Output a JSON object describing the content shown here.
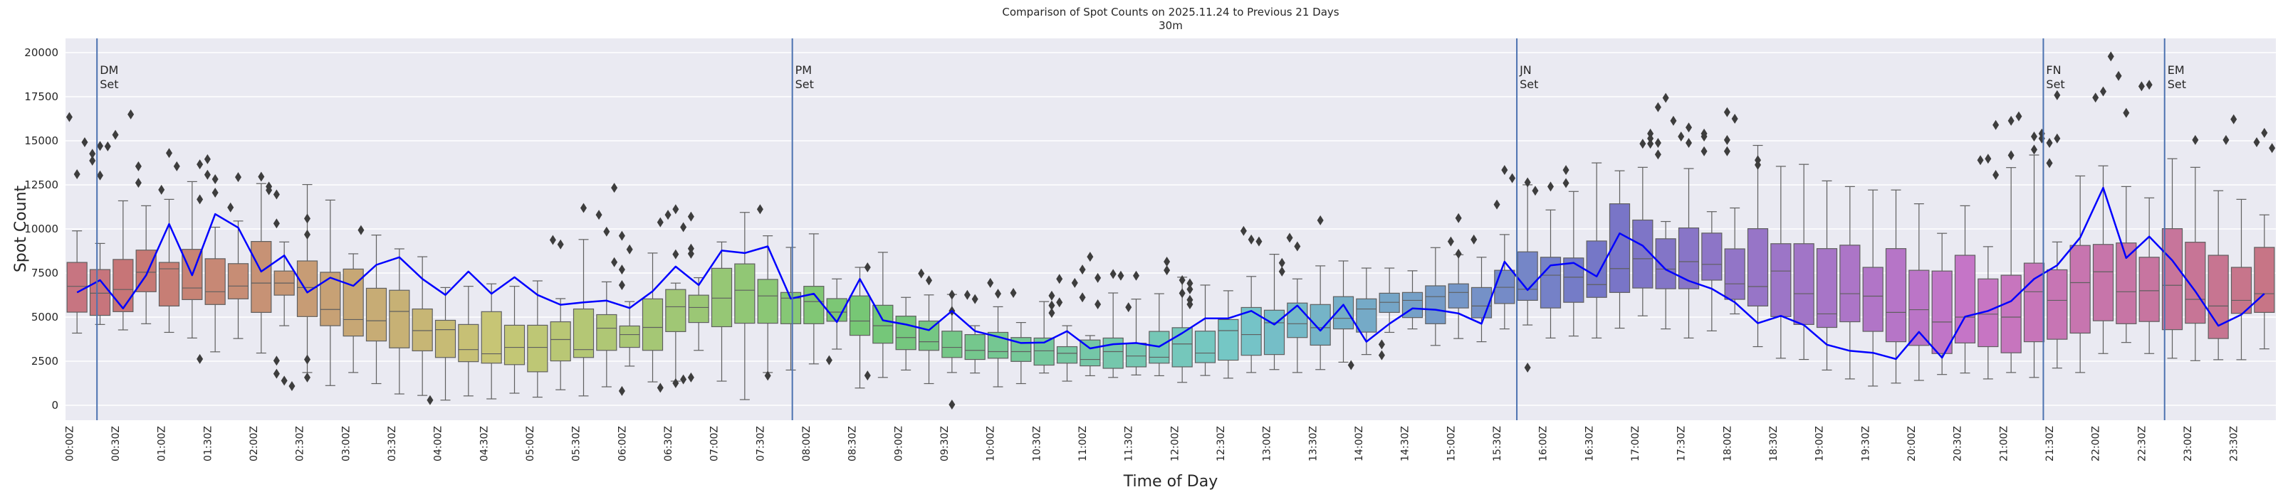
{
  "chart_data": {
    "type": "box",
    "title": "Comparison of Spot Counts on 2025.11.24 to Previous 21 Days",
    "subtitle": "30m",
    "xlabel": "Time of Day",
    "ylabel": "Spot Count",
    "ylim": [
      -1000,
      20800
    ],
    "yticks": [
      0,
      2500,
      5000,
      7500,
      10000,
      12500,
      15000,
      17500,
      20000
    ],
    "xticks": [
      "00:00Z",
      "00:30Z",
      "01:00Z",
      "01:30Z",
      "02:00Z",
      "02:30Z",
      "03:00Z",
      "03:30Z",
      "04:00Z",
      "04:30Z",
      "05:00Z",
      "05:30Z",
      "06:00Z",
      "06:30Z",
      "07:00Z",
      "07:30Z",
      "08:00Z",
      "08:30Z",
      "09:00Z",
      "09:30Z",
      "10:00Z",
      "10:30Z",
      "11:00Z",
      "11:30Z",
      "12:00Z",
      "12:30Z",
      "13:00Z",
      "13:30Z",
      "14:00Z",
      "14:30Z",
      "15:00Z",
      "15:30Z",
      "16:00Z",
      "16:30Z",
      "17:00Z",
      "17:30Z",
      "18:00Z",
      "18:30Z",
      "19:00Z",
      "19:30Z",
      "20:00Z",
      "20:30Z",
      "21:00Z",
      "21:30Z",
      "22:00Z",
      "22:30Z",
      "23:00Z",
      "23:30Z"
    ],
    "bin_minutes": 5,
    "grid": true,
    "background": "#eaeaf2",
    "palette": "husl",
    "line_color": "#0000ff",
    "marker_line_color": "#4c72b0",
    "outlier_color": "#3d3d3d",
    "box_times": [
      "00:00",
      "00:15",
      "00:30",
      "00:45",
      "01:00",
      "01:15",
      "01:30",
      "01:45",
      "02:00",
      "02:15",
      "02:30",
      "02:45",
      "03:00",
      "03:15",
      "03:30",
      "03:45",
      "04:00",
      "04:15",
      "04:30",
      "04:45",
      "05:00",
      "05:15",
      "05:30",
      "05:45",
      "06:00",
      "06:15",
      "06:30",
      "06:45",
      "07:00",
      "07:15",
      "07:30",
      "07:45",
      "08:00",
      "08:15",
      "08:30",
      "08:45",
      "09:00",
      "09:15",
      "09:30",
      "09:45",
      "10:00",
      "10:15",
      "10:30",
      "10:45",
      "11:00",
      "11:15",
      "11:30",
      "11:45",
      "12:00",
      "12:15",
      "12:30",
      "12:45",
      "13:00",
      "13:15",
      "13:30",
      "13:45",
      "14:00",
      "14:15",
      "14:30",
      "14:45",
      "15:00",
      "15:15",
      "15:30",
      "15:45",
      "16:00",
      "16:15",
      "16:30",
      "16:45",
      "17:00",
      "17:15",
      "17:30",
      "17:45",
      "18:00",
      "18:15",
      "18:30",
      "18:45",
      "19:00",
      "19:15",
      "19:30",
      "19:45",
      "20:00",
      "20:15",
      "20:30",
      "20:45",
      "21:00",
      "21:15",
      "21:30",
      "21:45",
      "22:00",
      "22:15",
      "22:30",
      "22:45",
      "23:00",
      "23:15",
      "23:30",
      "23:45"
    ],
    "whisker_low": [
      4093,
      4582,
      4275,
      4624,
      4135,
      3814,
      3031,
      3786,
      2962,
      4512,
      1858,
      1118,
      1858,
      1229,
      643,
      559,
      293,
      531,
      363,
      685,
      461,
      880,
      531,
      1048,
      2221,
      1327,
      1369,
      3115,
      1369,
      321,
      1858,
      1998,
      2347,
      3185,
      978,
      1579,
      1998,
      1229,
      1858,
      1830,
      1048,
      1229,
      1830,
      1369,
      1676,
      1579,
      1718,
      1676,
      1299,
      1690,
      1537,
      1858,
      2026,
      1858,
      2026,
      2445,
      2878,
      4135,
      4331,
      3395,
      3786,
      3604,
      4331,
      4554,
      3814,
      3926,
      3814,
      4373,
      5071,
      4331,
      3814,
      4219,
      5183,
      3325,
      2668,
      2598,
      1998,
      1495,
      1090,
      1257,
      1411,
      1746,
      1830,
      1495,
      1858,
      1579,
      2109,
      1858,
      2934,
      3562,
      2934,
      2668,
      2529,
      2584,
      2584,
      3199
    ],
    "q1": [
      5281,
      5099,
      5309,
      6440,
      5630,
      5993,
      5714,
      6035,
      5267,
      6245,
      5029,
      4512,
      3926,
      3646,
      3255,
      3087,
      2710,
      2473,
      2389,
      2305,
      1900,
      2515,
      2710,
      3115,
      3283,
      3115,
      4177,
      4694,
      4456,
      4652,
      4652,
      4624,
      4624,
      4764,
      3967,
      3520,
      3157,
      3115,
      2710,
      2598,
      2668,
      2487,
      2277,
      2389,
      2235,
      2096,
      2179,
      2389,
      2179,
      2417,
      2557,
      2836,
      2878,
      3842,
      3409,
      4331,
      4149,
      5267,
      4973,
      4624,
      5518,
      4959,
      5770,
      5951,
      5518,
      5839,
      6119,
      6398,
      6650,
      6608,
      6608,
      7097,
      6007,
      5630,
      5029,
      4582,
      4415,
      4736,
      4191,
      3604,
      3395,
      2934,
      3534,
      3325,
      2976,
      3604,
      3744,
      4093,
      4792,
      4624,
      4750,
      4289,
      4652,
      3786,
      5211,
      5267
    ],
    "median": [
      6747,
      6356,
      6566,
      7544,
      7739,
      6650,
      6440,
      6761,
      6929,
      6929,
      6678,
      5434,
      4862,
      4792,
      5323,
      4233,
      4289,
      3157,
      2920,
      3283,
      3283,
      3730,
      3157,
      4373,
      4009,
      4415,
      5588,
      5546,
      6077,
      6524,
      6203,
      6077,
      5881,
      5281,
      4778,
      4512,
      3842,
      3604,
      3283,
      3115,
      3045,
      3045,
      3087,
      2948,
      2598,
      3045,
      2794,
      2724,
      3479,
      2962,
      4233,
      4009,
      4680,
      4624,
      4401,
      4931,
      5462,
      5839,
      5951,
      6161,
      6398,
      5630,
      6692,
      6580,
      7376,
      7264,
      6845,
      7753,
      8312,
      7725,
      8145,
      7991,
      6887,
      6734,
      7614,
      6328,
      5183,
      6328,
      6189,
      5267,
      5420,
      4722,
      5001,
      5169,
      5001,
      6440,
      5951,
      6957,
      7572,
      6440,
      6496,
      6803,
      6007,
      5630,
      5951,
      6328
    ],
    "q3": [
      8103,
      7697,
      8270,
      8801,
      8103,
      8843,
      8312,
      8033,
      9290,
      7614,
      8186,
      7544,
      7725,
      6636,
      6524,
      5462,
      4820,
      4582,
      5309,
      4540,
      4540,
      4736,
      5462,
      5141,
      4498,
      6035,
      6566,
      6245,
      7767,
      8019,
      7139,
      6398,
      6748,
      6049,
      6203,
      5672,
      5057,
      4778,
      4205,
      4009,
      4135,
      3842,
      3814,
      3325,
      3702,
      3814,
      3520,
      4191,
      4401,
      4205,
      4862,
      5546,
      5392,
      5798,
      5714,
      6161,
      6035,
      6356,
      6398,
      6775,
      6887,
      6678,
      7656,
      8703,
      8396,
      8354,
      9318,
      11427,
      10505,
      9444,
      10058,
      9765,
      8871,
      10016,
      9164,
      9164,
      8885,
      9081,
      7823,
      8885,
      7656,
      7614,
      8507,
      7167,
      7376,
      8061,
      7684,
      9066,
      9122,
      9206,
      8396,
      10016,
      9248,
      8507,
      7823,
      8955
    ],
    "whisker_high": [
      9891,
      9178,
      11595,
      11316,
      11679,
      12685,
      10100,
      10450,
      12573,
      9262,
      12517,
      11637,
      8591,
      9653,
      8871,
      8424,
      6678,
      6748,
      6887,
      6748,
      7055,
      6049,
      9402,
      6999,
      5881,
      8633,
      6929,
      7236,
      9262,
      10938,
      9611,
      8955,
      9723,
      7167,
      7823,
      8675,
      6119,
      6259,
      6287,
      4512,
      5588,
      4694,
      5881,
      4512,
      3953,
      6370,
      6021,
      6328,
      7264,
      6817,
      6496,
      7306,
      8564,
      7167,
      7907,
      8186,
      7781,
      7781,
      7628,
      8941,
      8536,
      8396,
      9681,
      12503,
      11078,
      12126,
      13746,
      13299,
      13495,
      10422,
      13425,
      10980,
      11190,
      14738,
      13551,
      13663,
      12726,
      12405,
      12210,
      12210,
      11427,
      9751,
      11316,
      8997,
      13481,
      14193,
      9262,
      13006,
      13579,
      12405,
      11763,
      13984,
      13495,
      12168,
      11679,
      10799
    ],
    "line_values": [
      6398,
      7097,
      5490,
      7376,
      10282,
      7376,
      10841,
      10072,
      7586,
      8494,
      6398,
      7236,
      6775,
      7963,
      8396,
      7167,
      6259,
      7586,
      6328,
      7264,
      6259,
      5700,
      5839,
      5937,
      5518,
      6468,
      7865,
      6817,
      8773,
      8633,
      9011,
      6049,
      6328,
      4722,
      7167,
      4820,
      4582,
      4261,
      5351,
      4205,
      3884,
      3534,
      3562,
      4205,
      3227,
      3465,
      3534,
      3325,
      4093,
      4931,
      4931,
      5351,
      4582,
      5658,
      4233,
      5700,
      3604,
      4624,
      5490,
      5420,
      5211,
      4624,
      8145,
      6538,
      7935,
      8075,
      7306,
      9751,
      9053,
      7697,
      7055,
      6608,
      5839,
      4652,
      5071,
      4554,
      3437,
      3087,
      2976,
      2626,
      4163,
      2696,
      5029,
      5351,
      5909,
      7167,
      7935,
      9514,
      12336,
      8354,
      9569,
      8214,
      6468,
      4512,
      5141,
      6328
    ],
    "outliers": [
      [
        "00:00",
        16345
      ],
      [
        "00:05",
        13104
      ],
      [
        "00:10",
        14920
      ],
      [
        "00:15",
        14264
      ],
      [
        "00:15",
        13872
      ],
      [
        "00:20",
        14710
      ],
      [
        "00:20",
        13034
      ],
      [
        "00:25",
        14682
      ],
      [
        "00:30",
        15339
      ],
      [
        "00:40",
        16499
      ],
      [
        "00:45",
        13551
      ],
      [
        "00:45",
        12615
      ],
      [
        "01:00",
        12224
      ],
      [
        "01:05",
        14306
      ],
      [
        "01:10",
        13551
      ],
      [
        "01:25",
        13663
      ],
      [
        "01:25",
        11679
      ],
      [
        "01:25",
        2626
      ],
      [
        "01:30",
        13956
      ],
      [
        "01:30",
        13076
      ],
      [
        "01:35",
        12824
      ],
      [
        "01:35",
        12056
      ],
      [
        "01:45",
        11218
      ],
      [
        "01:50",
        12936
      ],
      [
        "02:05",
        12964
      ],
      [
        "02:10",
        12405
      ],
      [
        "02:10",
        12196
      ],
      [
        "02:15",
        11958
      ],
      [
        "02:15",
        10310
      ],
      [
        "02:15",
        2529
      ],
      [
        "02:15",
        1788
      ],
      [
        "02:20",
        1397
      ],
      [
        "02:25",
        1090
      ],
      [
        "02:35",
        10589
      ],
      [
        "02:35",
        9681
      ],
      [
        "02:35",
        2598
      ],
      [
        "02:35",
        1579
      ],
      [
        "03:10",
        9933
      ],
      [
        "03:55",
        293
      ],
      [
        "05:15",
        9374
      ],
      [
        "05:20",
        9122
      ],
      [
        "05:35",
        11190
      ],
      [
        "05:45",
        10799
      ],
      [
        "05:50",
        9849
      ],
      [
        "05:55",
        12335
      ],
      [
        "05:55",
        8117
      ],
      [
        "06:00",
        9611
      ],
      [
        "06:00",
        7697
      ],
      [
        "06:00",
        6817
      ],
      [
        "06:00",
        810
      ],
      [
        "06:05",
        8843
      ],
      [
        "06:25",
        10380
      ],
      [
        "06:25",
        992
      ],
      [
        "06:30",
        10799
      ],
      [
        "06:35",
        11120
      ],
      [
        "06:35",
        8564
      ],
      [
        "06:35",
        1257
      ],
      [
        "06:40",
        10100
      ],
      [
        "06:40",
        1467
      ],
      [
        "06:45",
        10701
      ],
      [
        "06:45",
        8885
      ],
      [
        "06:45",
        8592
      ],
      [
        "06:45",
        1579
      ],
      [
        "07:30",
        11120
      ],
      [
        "07:35",
        1676
      ],
      [
        "08:15",
        2557
      ],
      [
        "08:40",
        7823
      ],
      [
        "08:40",
        1690
      ],
      [
        "09:15",
        7474
      ],
      [
        "09:20",
        7083
      ],
      [
        "09:35",
        6272
      ],
      [
        "09:35",
        5350
      ],
      [
        "09:35",
        42
      ],
      [
        "09:45",
        6258
      ],
      [
        "09:50",
        6021
      ],
      [
        "10:00",
        6943
      ],
      [
        "10:05",
        6328
      ],
      [
        "10:15",
        6370
      ],
      [
        "10:40",
        6217
      ],
      [
        "10:40",
        5658
      ],
      [
        "10:40",
        5239
      ],
      [
        "10:45",
        7167
      ],
      [
        "10:45",
        5839
      ],
      [
        "10:55",
        6943
      ],
      [
        "11:00",
        7697
      ],
      [
        "11:00",
        6119
      ],
      [
        "11:05",
        8424
      ],
      [
        "11:10",
        7222
      ],
      [
        "11:10",
        5728
      ],
      [
        "11:20",
        7446
      ],
      [
        "11:25",
        7348
      ],
      [
        "11:30",
        5560
      ],
      [
        "11:35",
        7348
      ],
      [
        "11:55",
        8145
      ],
      [
        "11:55",
        7656
      ],
      [
        "12:05",
        7097
      ],
      [
        "12:05",
        6356
      ],
      [
        "12:10",
        6915
      ],
      [
        "12:10",
        6580
      ],
      [
        "12:10",
        5979
      ],
      [
        "12:10",
        5728
      ],
      [
        "12:45",
        9891
      ],
      [
        "12:50",
        9402
      ],
      [
        "12:55",
        9290
      ],
      [
        "13:10",
        8075
      ],
      [
        "13:10",
        7586
      ],
      [
        "13:15",
        9500
      ],
      [
        "13:20",
        9011
      ],
      [
        "13:35",
        10491
      ],
      [
        "13:55",
        2277
      ],
      [
        "14:15",
        3451
      ],
      [
        "14:15",
        2836
      ],
      [
        "15:00",
        9290
      ],
      [
        "15:05",
        10617
      ],
      [
        "15:05",
        8592
      ],
      [
        "15:15",
        9402
      ],
      [
        "15:30",
        11386
      ],
      [
        "15:35",
        13341
      ],
      [
        "15:40",
        12880
      ],
      [
        "15:50",
        12643
      ],
      [
        "15:50",
        2137
      ],
      [
        "15:55",
        12168
      ],
      [
        "16:05",
        12405
      ],
      [
        "16:15",
        13341
      ],
      [
        "16:15",
        12601
      ],
      [
        "17:05",
        14836
      ],
      [
        "17:10",
        15409
      ],
      [
        "17:10",
        15130
      ],
      [
        "17:10",
        14836
      ],
      [
        "17:15",
        16904
      ],
      [
        "17:15",
        14878
      ],
      [
        "17:15",
        14222
      ],
      [
        "17:20",
        17435
      ],
      [
        "17:25",
        16136
      ],
      [
        "17:30",
        15241
      ],
      [
        "17:35",
        15758
      ],
      [
        "17:35",
        14878
      ],
      [
        "17:45",
        15409
      ],
      [
        "17:45",
        15241
      ],
      [
        "17:45",
        14404
      ],
      [
        "18:00",
        16625
      ],
      [
        "18:00",
        15046
      ],
      [
        "18:00",
        14404
      ],
      [
        "18:05",
        16248
      ],
      [
        "18:20",
        13900
      ],
      [
        "18:20",
        13635
      ],
      [
        "20:45",
        13900
      ],
      [
        "20:50",
        13984
      ],
      [
        "20:55",
        15898
      ],
      [
        "20:55",
        13062
      ],
      [
        "21:05",
        16136
      ],
      [
        "21:05",
        14180
      ],
      [
        "21:10",
        16387
      ],
      [
        "21:20",
        15241
      ],
      [
        "21:20",
        14501
      ],
      [
        "21:25",
        15409
      ],
      [
        "21:25",
        15130
      ],
      [
        "21:30",
        14878
      ],
      [
        "21:30",
        13733
      ],
      [
        "21:35",
        17588
      ],
      [
        "21:35",
        15130
      ],
      [
        "22:00",
        17449
      ],
      [
        "22:05",
        17798
      ],
      [
        "22:10",
        19781
      ],
      [
        "22:15",
        18678
      ],
      [
        "22:20",
        16583
      ],
      [
        "22:30",
        18091
      ],
      [
        "22:35",
        18175
      ],
      [
        "23:05",
        15046
      ],
      [
        "23:25",
        15046
      ],
      [
        "23:30",
        16220
      ],
      [
        "23:45",
        14920
      ],
      [
        "23:50",
        15451
      ],
      [
        "23:55",
        14585
      ]
    ],
    "marker_lines": [
      {
        "time": "00:18",
        "label_line1": "DM",
        "label_line2": "Set"
      },
      {
        "time": "07:51",
        "label_line1": "PM",
        "label_line2": "Set"
      },
      {
        "time": "15:43",
        "label_line1": "JN",
        "label_line2": "Set"
      },
      {
        "time": "21:26",
        "label_line1": "FN",
        "label_line2": "Set"
      },
      {
        "time": "22:45",
        "label_line1": "EM",
        "label_line2": "Set"
      }
    ]
  }
}
